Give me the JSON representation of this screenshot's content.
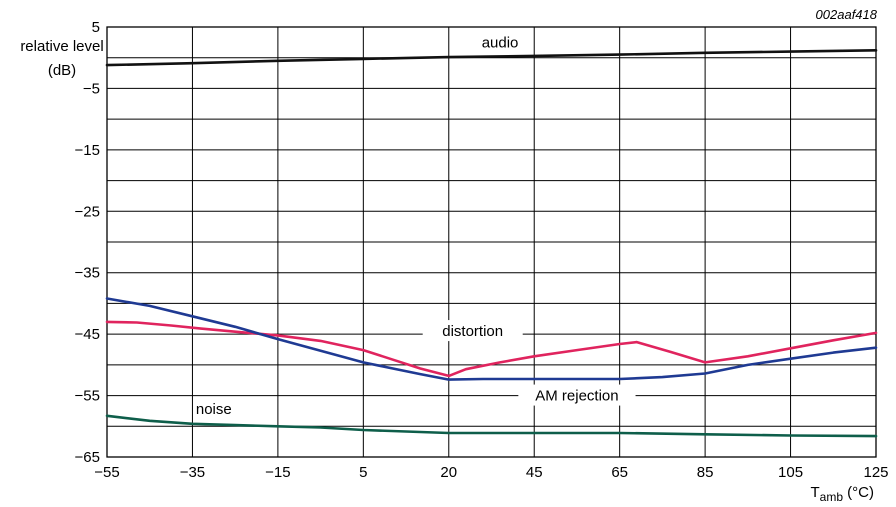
{
  "figure_id": "002aaf418",
  "chart_data": {
    "type": "line",
    "xlabel_main": "T",
    "xlabel_sub": "amb",
    "xlabel_unit": " (°C)",
    "ylabel_line1": "relative level",
    "ylabel_line2": "(dB)",
    "xlim": [
      -55,
      125
    ],
    "ylim": [
      -65,
      5
    ],
    "x_ticks": [
      -55,
      -35,
      -15,
      5,
      20,
      45,
      65,
      85,
      105,
      125
    ],
    "x_tick_labels": [
      "−55",
      "−35",
      "−15",
      "5",
      "20",
      "45",
      "65",
      "85",
      "105",
      "125"
    ],
    "y_ticks": [
      5,
      -5,
      -15,
      -25,
      -35,
      -45,
      -55,
      -65
    ],
    "y_tick_labels": [
      "5",
      "−5",
      "−15",
      "−25",
      "−35",
      "−45",
      "−55",
      "−65"
    ],
    "y_gridlines": [
      0,
      -5,
      -10,
      -15,
      -20,
      -25,
      -30,
      -35,
      -40,
      -45,
      -50,
      -55,
      -60
    ],
    "grid": true,
    "series": [
      {
        "name": "audio",
        "color": "#111111",
        "x": [
          -55,
          -35,
          -15,
          5,
          20,
          45,
          65,
          85,
          105,
          125
        ],
        "y": [
          -1.2,
          -0.9,
          -0.5,
          -0.2,
          0.1,
          0.3,
          0.5,
          0.8,
          1.0,
          1.2
        ]
      },
      {
        "name": "distortion",
        "color": "#e0245e",
        "x": [
          -55,
          -48,
          -40,
          -33,
          -25,
          -15,
          -5,
          5,
          10,
          15,
          20,
          25,
          35,
          45,
          55,
          65,
          69,
          77,
          85,
          95,
          105,
          115,
          125
        ],
        "y": [
          -43.0,
          -43.1,
          -43.6,
          -44.1,
          -44.6,
          -45.2,
          -46.1,
          -47.6,
          -49.1,
          -50.6,
          -51.8,
          -50.7,
          -49.6,
          -48.6,
          -47.6,
          -46.6,
          -46.3,
          -47.9,
          -49.6,
          -48.6,
          -47.3,
          -46.0,
          -44.8
        ]
      },
      {
        "name": "AM rejection",
        "color": "#1f3a93",
        "x": [
          -55,
          -45,
          -35,
          -25,
          -15,
          -5,
          5,
          15,
          20,
          30,
          45,
          65,
          75,
          85,
          95,
          105,
          115,
          125
        ],
        "y": [
          -39.2,
          -40.4,
          -42.1,
          -43.8,
          -45.8,
          -47.7,
          -49.6,
          -51.5,
          -52.4,
          -52.3,
          -52.3,
          -52.3,
          -52.0,
          -51.4,
          -50.0,
          -49.0,
          -48.0,
          -47.2
        ]
      },
      {
        "name": "noise",
        "color": "#0e5e4a",
        "x": [
          -55,
          -45,
          -35,
          -25,
          -15,
          -5,
          5,
          20,
          45,
          65,
          85,
          105,
          125
        ],
        "y": [
          -58.3,
          -59.1,
          -59.6,
          -59.8,
          -60.0,
          -60.2,
          -60.6,
          -61.1,
          -61.1,
          -61.1,
          -61.3,
          -61.5,
          -61.6
        ]
      }
    ]
  }
}
